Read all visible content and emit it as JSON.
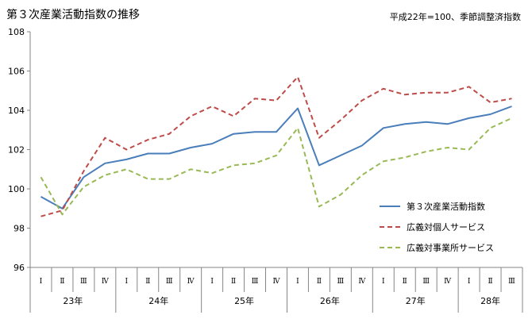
{
  "chart_data": {
    "type": "line",
    "title": "第３次産業活動指数の推移",
    "note": "平成22年=100、季節調整済指数",
    "xlabel": "",
    "ylabel": "",
    "ylim": [
      96,
      108
    ],
    "yticks": [
      96,
      98,
      100,
      102,
      104,
      106,
      108
    ],
    "grid": false,
    "legend_position": "right",
    "categories": [
      "Ⅰ",
      "Ⅱ",
      "Ⅲ",
      "Ⅳ",
      "Ⅰ",
      "Ⅱ",
      "Ⅲ",
      "Ⅳ",
      "Ⅰ",
      "Ⅱ",
      "Ⅲ",
      "Ⅳ",
      "Ⅰ",
      "Ⅱ",
      "Ⅲ",
      "Ⅳ",
      "Ⅰ",
      "Ⅱ",
      "Ⅲ",
      "Ⅳ",
      "Ⅰ",
      "Ⅱ",
      "Ⅲ"
    ],
    "year_groups": [
      {
        "label": "23年",
        "span": 4
      },
      {
        "label": "24年",
        "span": 4
      },
      {
        "label": "25年",
        "span": 4
      },
      {
        "label": "26年",
        "span": 4
      },
      {
        "label": "27年",
        "span": 4
      },
      {
        "label": "28年",
        "span": 3
      }
    ],
    "series": [
      {
        "name": "第３次産業活動指数",
        "color": "#4a7ebb",
        "dash": "solid",
        "values": [
          99.6,
          99.0,
          100.6,
          101.3,
          101.5,
          101.8,
          101.8,
          102.1,
          102.3,
          102.8,
          102.9,
          102.9,
          104.1,
          101.2,
          101.7,
          102.2,
          103.1,
          103.3,
          103.4,
          103.3,
          103.6,
          103.8,
          104.2
        ]
      },
      {
        "name": "広義対個人サービス",
        "color": "#be4b48",
        "dash": "dashed",
        "values": [
          98.6,
          98.9,
          100.9,
          102.6,
          102.0,
          102.5,
          102.8,
          103.7,
          104.2,
          103.7,
          104.6,
          104.5,
          105.7,
          102.6,
          103.5,
          104.5,
          105.1,
          104.8,
          104.9,
          104.9,
          105.2,
          104.4,
          104.6
        ]
      },
      {
        "name": "広義対事業所サービス",
        "color": "#98b954",
        "dash": "dashed",
        "values": [
          100.6,
          98.7,
          100.1,
          100.7,
          101.0,
          100.5,
          100.5,
          101.0,
          100.8,
          101.2,
          101.3,
          101.7,
          103.1,
          99.1,
          99.7,
          100.7,
          101.4,
          101.6,
          101.9,
          102.1,
          102.0,
          103.1,
          103.6
        ]
      }
    ]
  }
}
